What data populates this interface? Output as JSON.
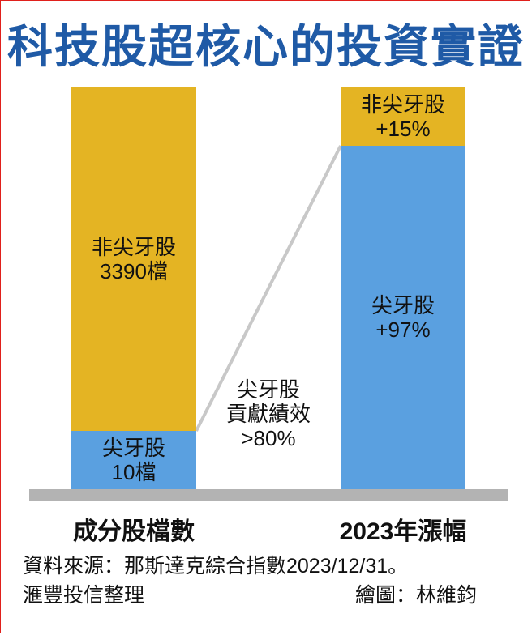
{
  "title": "科技股超核心的投資實證",
  "chart_data": {
    "type": "bar",
    "stacked": true,
    "categories": [
      "成分股檔數",
      "2023年漲幅"
    ],
    "series": [
      {
        "name": "尖牙股",
        "color": "#5aa0e0",
        "values": [
          10,
          97
        ],
        "labels": [
          [
            "尖牙股",
            "10檔"
          ],
          [
            "尖牙股",
            "+97%"
          ]
        ]
      },
      {
        "name": "非尖牙股",
        "color": "#e4b423",
        "values": [
          3390,
          15
        ],
        "labels": [
          [
            "非尖牙股",
            "3390檔"
          ],
          [
            "非尖牙股",
            "+15%"
          ]
        ]
      }
    ],
    "annotation": [
      "尖牙股",
      "貢獻績效",
      ">80%"
    ],
    "connector": true,
    "grid": false
  },
  "footer": {
    "source_line": "資料來源：那斯達克綜合指數2023/12/31。",
    "org": "滙豐投信整理",
    "credit": "繪圖：林維鈞"
  },
  "colors": {
    "title": "#1f5aa6",
    "border": "#e0201c",
    "baseline": "#b3b3b3",
    "connector": "#c8c8c8"
  }
}
